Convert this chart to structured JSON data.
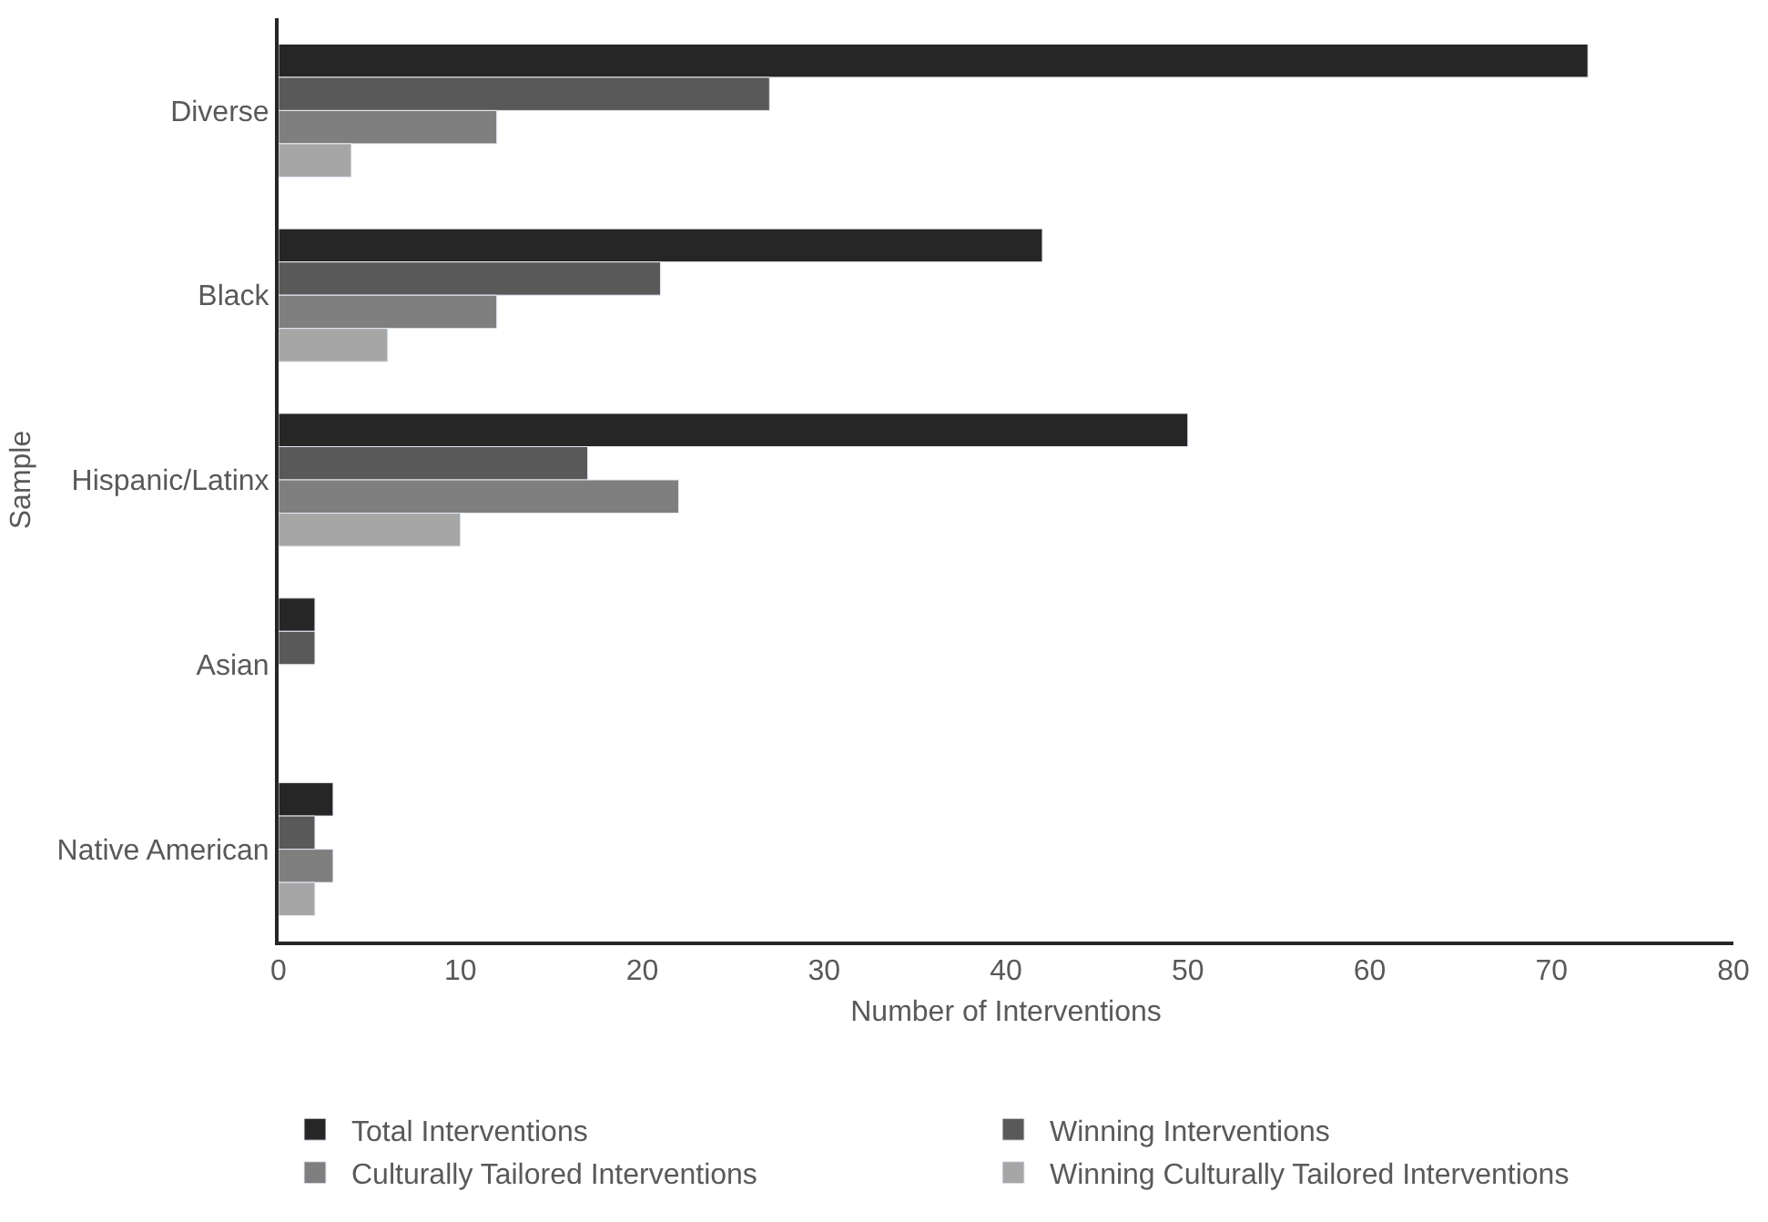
{
  "chart_data": {
    "type": "bar",
    "orientation": "horizontal",
    "xlabel": "Number of Interventions",
    "ylabel": "Sample",
    "categories": [
      "Diverse",
      "Black",
      "Hispanic/Latinx",
      "Asian",
      "Native American"
    ],
    "series": [
      {
        "name": "Total Interventions",
        "color": "#262626",
        "values": [
          72,
          42,
          50,
          2,
          3
        ]
      },
      {
        "name": "Winning Interventions",
        "color": "#595959",
        "values": [
          27,
          21,
          17,
          2,
          2
        ]
      },
      {
        "name": "Culturally Tailored Interventions",
        "color": "#7f7f7f",
        "values": [
          12,
          12,
          22,
          null,
          3
        ]
      },
      {
        "name": "Winning Culturally Tailored Interventions",
        "color": "#a6a6a6",
        "values": [
          4,
          6,
          10,
          null,
          2
        ]
      }
    ],
    "xlim": [
      0,
      80
    ],
    "xticks": [
      0,
      10,
      20,
      30,
      40,
      50,
      60,
      70,
      80
    ],
    "legend": "bottom"
  }
}
